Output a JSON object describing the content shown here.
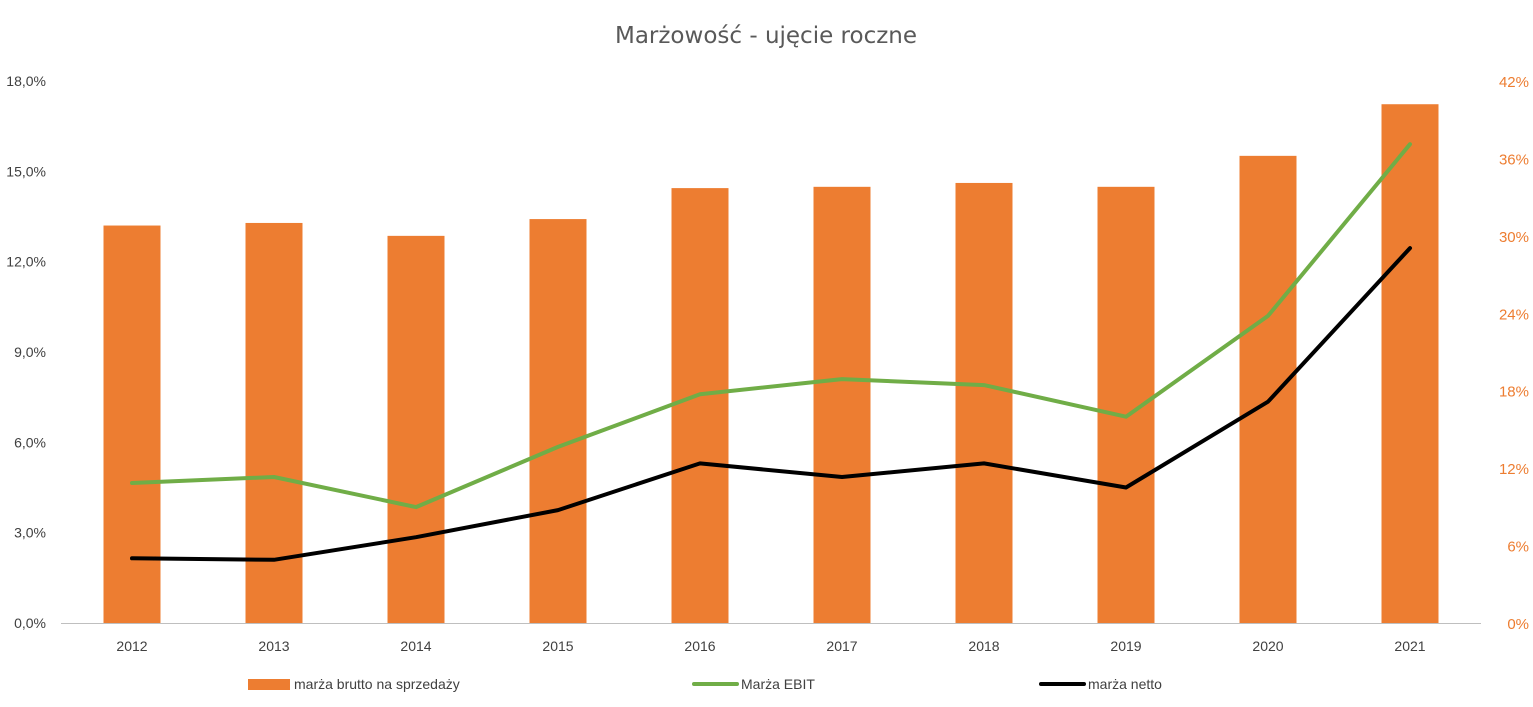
{
  "chart_data": {
    "type": "bar",
    "title": "Marżowość - ujęcie roczne",
    "categories": [
      "2012",
      "2013",
      "2014",
      "2015",
      "2016",
      "2017",
      "2018",
      "2019",
      "2020",
      "2021"
    ],
    "y_left": {
      "ylim": [
        0,
        18
      ],
      "ticks": [
        0,
        3,
        6,
        9,
        12,
        15,
        18
      ],
      "tick_labels": [
        "0,0%",
        "3,0%",
        "6,0%",
        "9,0%",
        "12,0%",
        "15,0%",
        "18,0%"
      ]
    },
    "y_right": {
      "ylim": [
        0,
        42
      ],
      "ticks": [
        0,
        6,
        12,
        18,
        24,
        30,
        36,
        42
      ],
      "tick_labels": [
        "0%",
        "6%",
        "12%",
        "18%",
        "24%",
        "30%",
        "36%",
        "42%"
      ]
    },
    "series": [
      {
        "name": "marża brutto na sprzedaży",
        "type": "bar",
        "axis": "right",
        "color": "#ED7D31",
        "values": [
          30.8,
          31.0,
          30.0,
          31.3,
          33.7,
          33.8,
          34.1,
          33.8,
          36.2,
          40.2
        ]
      },
      {
        "name": "Marża EBIT",
        "type": "line",
        "axis": "left",
        "color": "#70AD47",
        "values": [
          4.65,
          4.85,
          3.85,
          5.85,
          7.6,
          8.1,
          7.9,
          6.85,
          10.2,
          15.9
        ]
      },
      {
        "name": "marża netto",
        "type": "line",
        "axis": "left",
        "color": "#000000",
        "values": [
          2.15,
          2.1,
          2.85,
          3.75,
          5.3,
          4.85,
          5.3,
          4.5,
          7.35,
          12.45
        ]
      }
    ],
    "legend_position": "bottom",
    "grid": false
  }
}
